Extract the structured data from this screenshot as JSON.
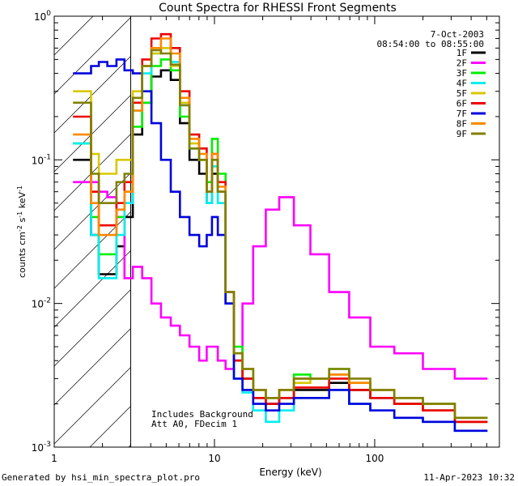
{
  "chart_data": {
    "type": "line",
    "title": "Count Spectra for RHESSI Front Segments",
    "xlabel": "Energy (keV)",
    "ylabel_parts": [
      "counts cm",
      "-2",
      " s",
      "-1",
      " keV",
      "-1"
    ],
    "xscale": "log",
    "yscale": "log",
    "xlim": [
      1,
      600
    ],
    "ylim": [
      0.001,
      1
    ],
    "x_tick_labels": [
      {
        "value": 1,
        "label": "1"
      },
      {
        "value": 10,
        "label": "10"
      },
      {
        "value": 100,
        "label": "100"
      }
    ],
    "y_tick_labels": [
      {
        "value": 1,
        "mant": "10",
        "exp": "0"
      },
      {
        "value": 0.1,
        "mant": "10",
        "exp": "-1"
      },
      {
        "value": 0.01,
        "mant": "10",
        "exp": "-2"
      },
      {
        "value": 0.001,
        "mant": "10",
        "exp": "-3"
      }
    ],
    "attenuator_threshold_keV": 3,
    "annotations": {
      "date": "7-Oct-2003",
      "time_range": "08:54:00 to 08:55:00",
      "background_note": "Includes Background",
      "att_note": "Att A0, FDecim 1"
    },
    "series": [
      {
        "name": "1F",
        "color": "#000000",
        "values": [
          0.1,
          0.1,
          0.03,
          0.016,
          0.016,
          0.025,
          0.04,
          0.15,
          0.25,
          0.38,
          0.42,
          0.36,
          0.18,
          0.1,
          0.08,
          0.05,
          0.08,
          0.06,
          0.01,
          0.004,
          0.003,
          0.0022,
          0.002,
          0.0022,
          0.0025,
          0.0025,
          0.0028,
          0.0025,
          0.0022,
          0.002,
          0.0018,
          0.0015
        ]
      },
      {
        "name": "2F",
        "color": "#ff00ff",
        "values": [
          0.07,
          0.07,
          0.07,
          0.06,
          0.055,
          0.04,
          0.015,
          0.018,
          0.015,
          0.01,
          0.008,
          0.007,
          0.006,
          0.005,
          0.004,
          0.005,
          0.005,
          0.004,
          0.0035,
          0.004,
          0.01,
          0.025,
          0.045,
          0.055,
          0.035,
          0.022,
          0.012,
          0.008,
          0.005,
          0.0045,
          0.0035,
          0.003
        ]
      },
      {
        "name": "3F",
        "color": "#00ee00",
        "values": [
          0.13,
          0.13,
          0.04,
          0.022,
          0.022,
          0.04,
          0.06,
          0.17,
          0.25,
          0.45,
          0.5,
          0.42,
          0.2,
          0.12,
          0.1,
          0.07,
          0.14,
          0.08,
          0.012,
          0.005,
          0.0035,
          0.0025,
          0.0022,
          0.0025,
          0.0032,
          0.003,
          0.0035,
          0.0028,
          0.0025,
          0.0022,
          0.002,
          0.0016
        ]
      },
      {
        "name": "4F",
        "color": "#00eeee",
        "values": [
          0.13,
          0.13,
          0.03,
          0.015,
          0.015,
          0.03,
          0.05,
          0.22,
          0.4,
          0.55,
          0.6,
          0.48,
          0.24,
          0.12,
          0.1,
          0.05,
          0.09,
          0.05,
          0.01,
          0.003,
          0.0024,
          0.0018,
          0.0015,
          0.0018,
          0.0022,
          0.0022,
          0.0025,
          0.002,
          0.0018,
          0.0016,
          0.0015,
          0.0013
        ]
      },
      {
        "name": "5F",
        "color": "#d8c800",
        "values": [
          0.3,
          0.3,
          0.11,
          0.08,
          0.08,
          0.1,
          0.1,
          0.3,
          0.45,
          0.55,
          0.6,
          0.45,
          0.25,
          0.13,
          0.1,
          0.06,
          0.1,
          0.06,
          0.012,
          0.0045,
          0.0035,
          0.0025,
          0.0022,
          0.0025,
          0.0028,
          0.003,
          0.0032,
          0.0028,
          0.0025,
          0.002,
          0.0018,
          0.0015
        ]
      },
      {
        "name": "6F",
        "color": "#ee0000",
        "values": [
          0.2,
          0.2,
          0.06,
          0.035,
          0.035,
          0.05,
          0.07,
          0.25,
          0.5,
          0.7,
          0.75,
          0.6,
          0.3,
          0.15,
          0.12,
          0.06,
          0.11,
          0.07,
          0.012,
          0.004,
          0.003,
          0.0022,
          0.002,
          0.0022,
          0.0026,
          0.0026,
          0.003,
          0.0025,
          0.0022,
          0.002,
          0.0018,
          0.0015
        ]
      },
      {
        "name": "7F",
        "color": "#0000dd",
        "values": [
          0.4,
          0.4,
          0.45,
          0.48,
          0.45,
          0.5,
          0.42,
          0.4,
          0.3,
          0.18,
          0.1,
          0.06,
          0.04,
          0.03,
          0.025,
          0.03,
          0.04,
          0.03,
          0.01,
          0.003,
          0.0025,
          0.002,
          0.0018,
          0.002,
          0.0022,
          0.0022,
          0.0025,
          0.002,
          0.0018,
          0.0016,
          0.0015,
          0.0013
        ]
      },
      {
        "name": "8F",
        "color": "#ff8800",
        "values": [
          0.15,
          0.15,
          0.05,
          0.03,
          0.03,
          0.045,
          0.06,
          0.22,
          0.45,
          0.6,
          0.7,
          0.55,
          0.27,
          0.14,
          0.11,
          0.06,
          0.11,
          0.065,
          0.012,
          0.0045,
          0.0035,
          0.0025,
          0.0022,
          0.0025,
          0.003,
          0.003,
          0.0032,
          0.0028,
          0.0025,
          0.0022,
          0.002,
          0.0016
        ]
      },
      {
        "name": "9F",
        "color": "#808000",
        "values": [
          0.25,
          0.25,
          0.08,
          0.05,
          0.05,
          0.07,
          0.08,
          0.27,
          0.45,
          0.58,
          0.55,
          0.46,
          0.24,
          0.12,
          0.1,
          0.06,
          0.1,
          0.06,
          0.012,
          0.0045,
          0.0035,
          0.0025,
          0.0022,
          0.0025,
          0.003,
          0.003,
          0.0035,
          0.003,
          0.0025,
          0.0022,
          0.002,
          0.0016
        ]
      }
    ],
    "x_points": [
      1.4,
      1.6,
      1.8,
      2.0,
      2.3,
      2.6,
      2.9,
      3.3,
      3.8,
      4.3,
      5.0,
      5.7,
      6.5,
      7.5,
      8.6,
      9.3,
      10.0,
      11.0,
      12.5,
      14.0,
      16.0,
      19.0,
      23.0,
      28.0,
      35.0,
      45.0,
      60.0,
      80.0,
      110.0,
      160.0,
      250.0,
      400.0
    ]
  },
  "footer": {
    "generated_by": "Generated by hsi_min_spectra_plot.pro",
    "timestamp": "11-Apr-2023 10:32"
  }
}
